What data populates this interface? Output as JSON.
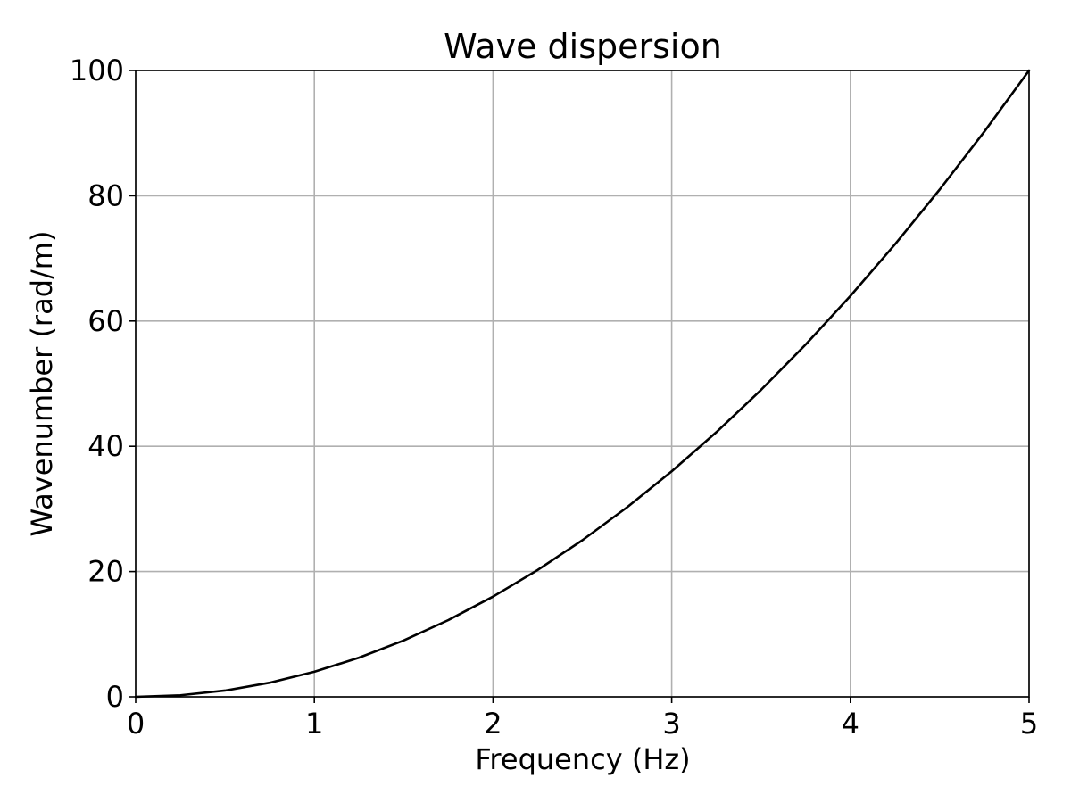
{
  "chart_data": {
    "type": "line",
    "title": "Wave dispersion",
    "xlabel": "Frequency (Hz)",
    "ylabel": "Wavenumber (rad/m)",
    "xlim": [
      0,
      5
    ],
    "ylim": [
      0,
      100
    ],
    "xticks": [
      "0",
      "1",
      "2",
      "3",
      "4",
      "5"
    ],
    "yticks": [
      "0",
      "20",
      "40",
      "60",
      "80",
      "100"
    ],
    "grid": true,
    "legend": "none",
    "series": [
      {
        "color": "#000000",
        "x": [
          0,
          0.25,
          0.5,
          0.75,
          1,
          1.25,
          1.5,
          1.75,
          2,
          2.25,
          2.5,
          2.75,
          3,
          3.25,
          3.5,
          3.75,
          4,
          4.25,
          4.5,
          4.75,
          5
        ],
        "y": [
          0,
          0.25,
          1,
          2.25,
          4,
          6.25,
          9,
          12.25,
          16,
          20.25,
          25,
          30.25,
          36,
          42.25,
          49,
          56.25,
          64,
          72.25,
          81,
          90.25,
          100
        ]
      }
    ],
    "colors": {
      "grid": "#b0b0b0",
      "axis": "#000000",
      "background": "#ffffff"
    }
  }
}
